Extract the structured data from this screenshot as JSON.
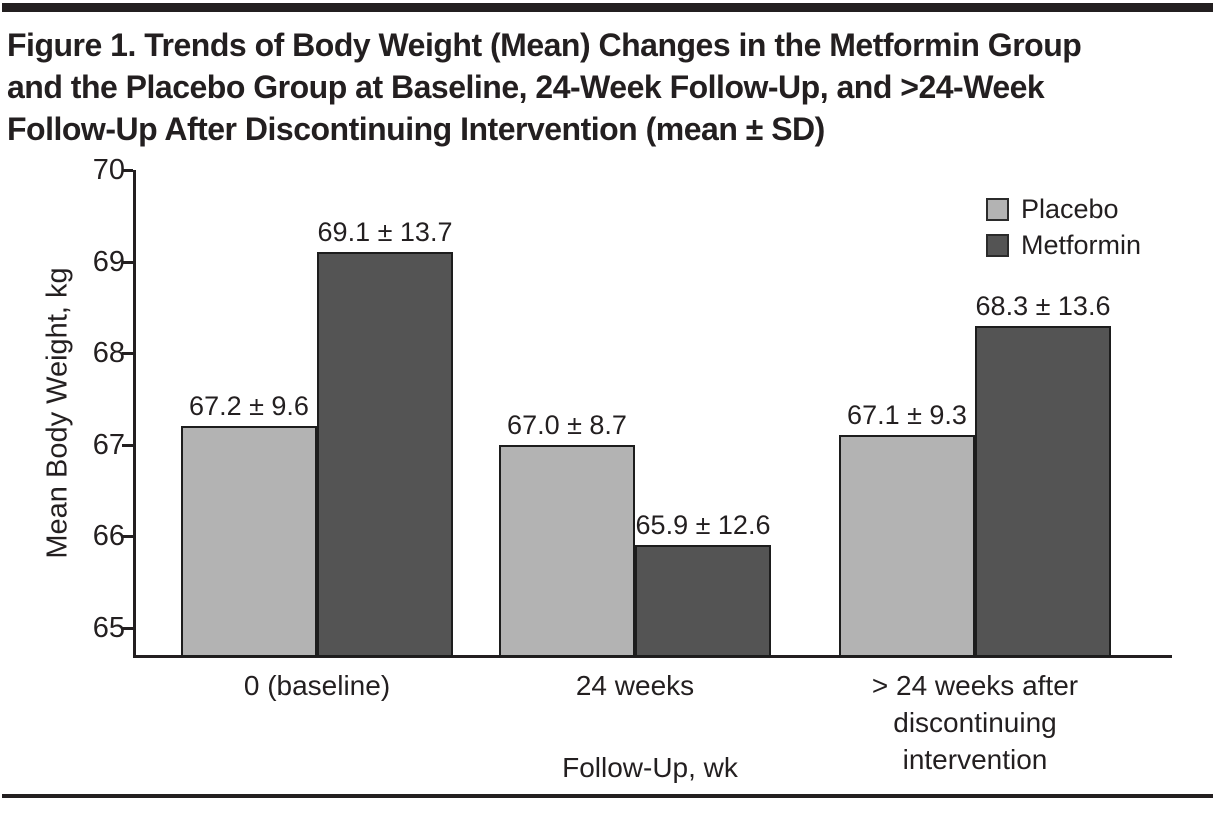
{
  "figure_title": {
    "lines": [
      "Figure 1. Trends of Body Weight (Mean) Changes in the Metformin Group",
      "and the Placebo Group at Baseline, 24-Week Follow-Up, and >24-Week",
      "Follow-Up After Discontinuing Intervention (mean ± SD)"
    ]
  },
  "chart_data": {
    "type": "bar",
    "title": "Figure 1. Trends of Body Weight (Mean) Changes in the Metformin Group and the Placebo Group at Baseline, 24-Week Follow-Up, and >24-Week Follow-Up After Discontinuing Intervention (mean ± SD)",
    "xlabel": "Follow-Up, wk",
    "ylabel": "Mean Body Weight, kg",
    "categories": [
      "0 (baseline)",
      "24 weeks",
      "> 24 weeks after\ndiscontinuing intervention"
    ],
    "series": [
      {
        "name": "Placebo",
        "color": "#b3b3b3",
        "values": [
          67.2,
          67.0,
          67.1
        ],
        "sd": [
          9.6,
          8.7,
          9.3
        ],
        "labels": [
          "67.2 ± 9.6",
          "67.0 ± 8.7",
          "67.1 ± 9.3"
        ]
      },
      {
        "name": "Metformin",
        "color": "#545454",
        "values": [
          69.1,
          65.9,
          68.3
        ],
        "sd": [
          13.7,
          12.6,
          13.6
        ],
        "labels": [
          "69.1 ± 13.7",
          "65.9 ± 12.6",
          "68.3 ± 13.6"
        ]
      }
    ],
    "ylim": [
      64.7,
      70
    ],
    "yticks": [
      65,
      66,
      67,
      68,
      69,
      70
    ],
    "grid": false,
    "legend_position": "top-right"
  }
}
